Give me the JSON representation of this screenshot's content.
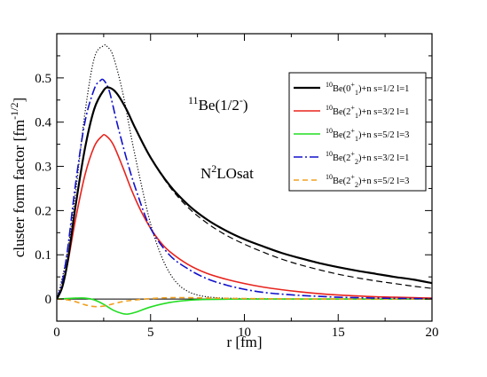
{
  "chart_data": {
    "type": "line",
    "xlabel": "r [fm]",
    "ylabel": "cluster form factor [fm",
    "ylabel_sup": "-1/2",
    "ylabel_close": "]",
    "xlim": [
      0,
      20
    ],
    "ylim": [
      -0.05,
      0.6
    ],
    "xticks": [
      0,
      5,
      10,
      15,
      20
    ],
    "yticks": [
      0,
      0.1,
      0.2,
      0.3,
      0.4,
      0.5
    ],
    "xtick_labels": [
      "0",
      "5",
      "10",
      "15",
      "20"
    ],
    "ytick_labels": [
      "0",
      "0.1",
      "0.2",
      "0.3",
      "0.4",
      "0.5"
    ],
    "grid": false,
    "legend_position": "top-right",
    "annotations": {
      "nucleus_sup": "11",
      "nucleus_main": "Be(1/2",
      "nucleus_parity": "-",
      "nucleus_close": ")",
      "method_pre": "N",
      "method_sup": "2",
      "method_post": "LOsat"
    },
    "series": [
      {
        "key": "gs",
        "legend": {
          "a": "10",
          "b": "Be(0",
          "c": "+",
          "d": "1",
          "e": ")+n  s=1/2  l=1"
        },
        "color": "#000000",
        "dash": "",
        "width": 2.2,
        "x": [
          0,
          0.3,
          0.6,
          1.0,
          1.5,
          2.0,
          2.5,
          2.8,
          3.2,
          3.7,
          4.2,
          5.0,
          6.0,
          7.0,
          8.0,
          9.0,
          10.0,
          11.0,
          12.0,
          13.0,
          14.0,
          15.0,
          16.0,
          17.0,
          18.0,
          19.0,
          20.0
        ],
        "y": [
          0,
          0.028,
          0.09,
          0.21,
          0.34,
          0.43,
          0.472,
          0.478,
          0.465,
          0.43,
          0.385,
          0.32,
          0.258,
          0.213,
          0.18,
          0.155,
          0.135,
          0.119,
          0.104,
          0.092,
          0.081,
          0.072,
          0.064,
          0.057,
          0.05,
          0.044,
          0.036
        ]
      },
      {
        "key": "gs_dashed",
        "legend": null,
        "color": "#000000",
        "dash": "7,4",
        "width": 1.2,
        "x": [
          3.7,
          4.2,
          5.0,
          6.0,
          7.0,
          8.0,
          9.0,
          10.0,
          11.0,
          12.0,
          13.0,
          14.0,
          15.0,
          16.0,
          17.0,
          18.0,
          19.0,
          20.0
        ],
        "y": [
          0.43,
          0.385,
          0.32,
          0.255,
          0.207,
          0.172,
          0.145,
          0.124,
          0.106,
          0.09,
          0.077,
          0.066,
          0.056,
          0.048,
          0.041,
          0.035,
          0.029,
          0.024
        ]
      },
      {
        "key": "exc1_p",
        "legend": {
          "a": "10",
          "b": "Be(2",
          "c": "+",
          "d": "1",
          "e": ")+n  s=3/2  l=1"
        },
        "color": "#e8231d",
        "dash": "",
        "width": 1.6,
        "x": [
          0,
          0.3,
          0.6,
          1.0,
          1.5,
          2.0,
          2.4,
          2.6,
          3.0,
          3.5,
          4.0,
          4.5,
          5.0,
          5.5,
          6.0,
          7.0,
          8.0,
          9.0,
          10.0,
          11.0,
          12.0,
          13.0,
          14.0,
          15.0,
          16.0,
          17.0,
          18.0,
          19.0,
          20.0
        ],
        "y": [
          0,
          0.03,
          0.085,
          0.18,
          0.28,
          0.345,
          0.368,
          0.37,
          0.35,
          0.3,
          0.245,
          0.198,
          0.16,
          0.13,
          0.108,
          0.078,
          0.058,
          0.045,
          0.035,
          0.027,
          0.021,
          0.016,
          0.012,
          0.009,
          0.007,
          0.005,
          0.004,
          0.003,
          0.002
        ]
      },
      {
        "key": "exc1_f",
        "legend": {
          "a": "10",
          "b": "Be(2",
          "c": "+",
          "d": "1",
          "e": ")+n  s=5/2  l=3"
        },
        "color": "#22dd22",
        "dash": "",
        "width": 1.6,
        "x": [
          0,
          0.5,
          1.0,
          1.5,
          2.0,
          2.5,
          3.0,
          3.5,
          3.8,
          4.2,
          5.0,
          6.0,
          7.0,
          8.0,
          10.0,
          12.0,
          14.0,
          16.0,
          18.0,
          20.0
        ],
        "y": [
          0,
          0.001,
          0.002,
          0.002,
          -0.002,
          -0.012,
          -0.025,
          -0.033,
          -0.034,
          -0.03,
          -0.018,
          -0.008,
          -0.003,
          -0.001,
          0,
          0,
          0,
          0,
          0,
          0
        ]
      },
      {
        "key": "exc2_p",
        "legend": {
          "a": "10",
          "b": "Be(2",
          "c": "+",
          "d": "2",
          "e": ")+n  s=3/2  l=1"
        },
        "color": "#1111cc",
        "dash": "10,3,2,3",
        "width": 1.6,
        "x": [
          0,
          0.3,
          0.6,
          1.0,
          1.5,
          2.0,
          2.3,
          2.5,
          2.8,
          3.2,
          3.7,
          4.2,
          5.0,
          6.0,
          7.0,
          8.0,
          9.0,
          10.0,
          11.0,
          12.0,
          13.0,
          14.0,
          15.0,
          16.0,
          17.0,
          18.0,
          19.0,
          20.0
        ],
        "y": [
          0,
          0.04,
          0.12,
          0.26,
          0.4,
          0.475,
          0.493,
          0.495,
          0.47,
          0.4,
          0.32,
          0.25,
          0.16,
          0.1,
          0.068,
          0.046,
          0.032,
          0.022,
          0.015,
          0.011,
          0.008,
          0.006,
          0.004,
          0.003,
          0.002,
          0.0015,
          0.001,
          0.0008
        ]
      },
      {
        "key": "exc2_f",
        "legend": {
          "a": "10",
          "b": "Be(2",
          "c": "+",
          "d": "2",
          "e": ")+n  s=5/2  l=3"
        },
        "color": "#f0a020",
        "dash": "6,4",
        "width": 1.6,
        "x": [
          0,
          0.5,
          1.0,
          1.5,
          2.0,
          2.5,
          3.0,
          3.5,
          4.0,
          5.0,
          6.0,
          7.0,
          8.0,
          10.0,
          12.0,
          14.0,
          16.0,
          18.0,
          20.0
        ],
        "y": [
          0,
          -0.0015,
          -0.006,
          -0.013,
          -0.017,
          -0.016,
          -0.011,
          -0.006,
          -0.003,
          0.001,
          0.003,
          0.003,
          0.002,
          0.001,
          0.0005,
          0,
          0,
          0,
          0
        ]
      },
      {
        "key": "ref_dotted",
        "legend": null,
        "color": "#000000",
        "dash": "1.2,2",
        "width": 1.2,
        "x": [
          0,
          0.5,
          1.0,
          1.5,
          2.0,
          2.5,
          2.7,
          3.0,
          3.5,
          4.0,
          4.5,
          5.0,
          5.5,
          6.0,
          6.5,
          7.0,
          7.5,
          8.0,
          8.5,
          9.0,
          10.0,
          11.0,
          12.0,
          14.0,
          16.0,
          18.0,
          20.0
        ],
        "y": [
          0,
          0.09,
          0.24,
          0.42,
          0.545,
          0.573,
          0.57,
          0.55,
          0.47,
          0.36,
          0.26,
          0.17,
          0.105,
          0.06,
          0.032,
          0.017,
          0.009,
          0.005,
          0.003,
          0.002,
          0.001,
          0.0005,
          0.0002,
          0,
          0,
          0,
          0
        ]
      }
    ]
  }
}
